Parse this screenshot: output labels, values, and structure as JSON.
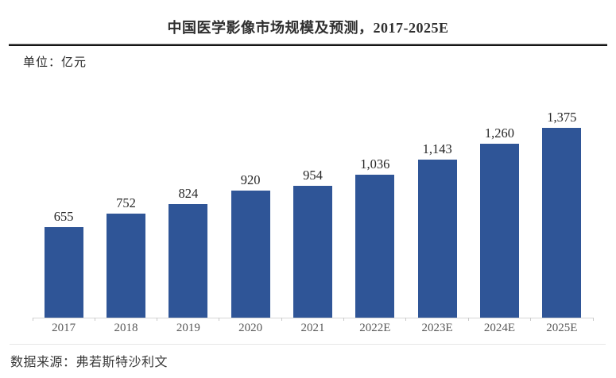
{
  "chart_data": {
    "type": "bar",
    "title": "中国医学影像市场规模及预测，2017-2025E",
    "unit_label": "单位：亿元",
    "source_label": "数据来源：弗若斯特沙利文",
    "categories": [
      "2017",
      "2018",
      "2019",
      "2020",
      "2021",
      "2022E",
      "2023E",
      "2024E",
      "2025E"
    ],
    "values": [
      655,
      752,
      824,
      920,
      954,
      1036,
      1143,
      1260,
      1375
    ],
    "value_labels": [
      "655",
      "752",
      "824",
      "920",
      "954",
      "1,036",
      "1,143",
      "1,260",
      "1,375"
    ],
    "xlabel": "",
    "ylabel": "亿元",
    "ylim": [
      0,
      1450
    ],
    "grid": false,
    "legend": "none",
    "bar_color": "#2F5597"
  }
}
